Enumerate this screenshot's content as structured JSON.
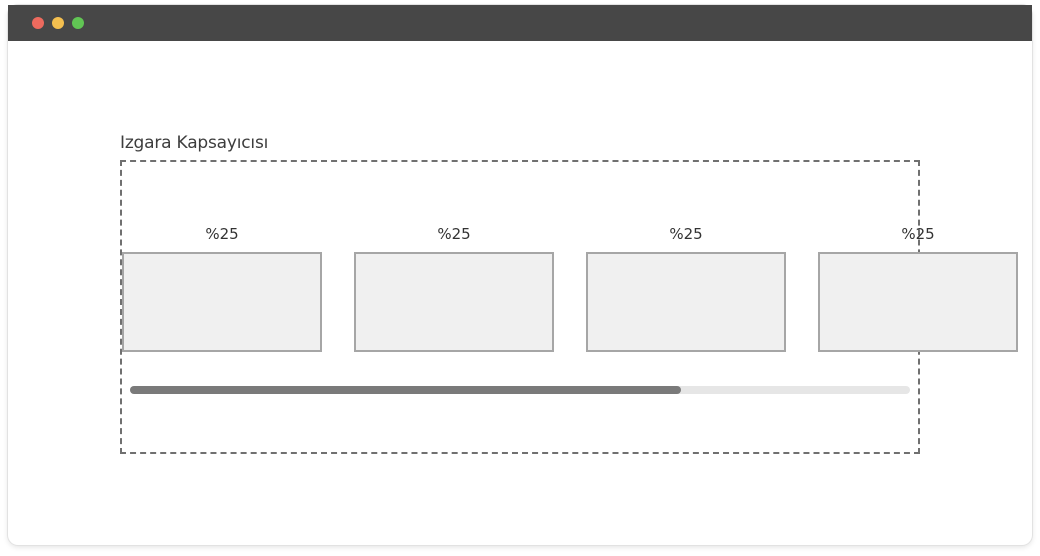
{
  "window": {
    "controls": [
      {
        "name": "close",
        "color": "#ed6a5e"
      },
      {
        "name": "minimize",
        "color": "#f4bf4f"
      },
      {
        "name": "maximize",
        "color": "#61c554"
      }
    ]
  },
  "grid": {
    "label": "Izgara Kapsayıcısı",
    "items": [
      {
        "label": "%25"
      },
      {
        "label": "%25"
      },
      {
        "label": "%25"
      },
      {
        "label": "%25"
      }
    ],
    "scroll_position": 0.706
  }
}
